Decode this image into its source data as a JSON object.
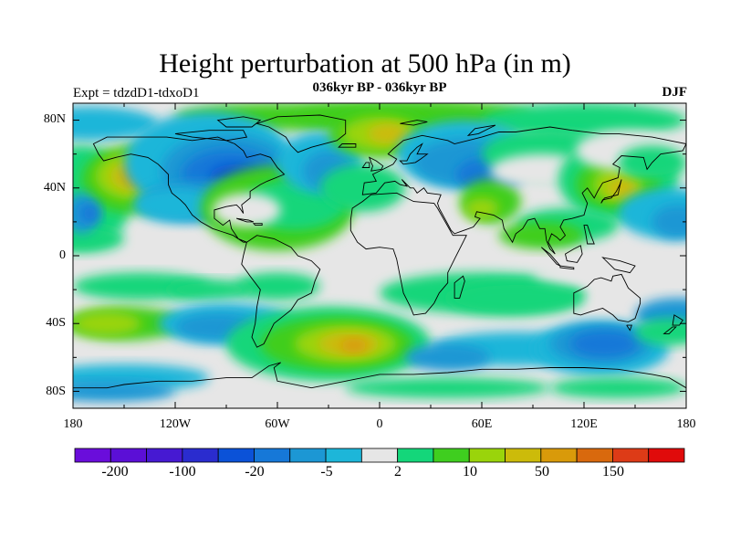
{
  "title": "Height perturbation at 500 hPa (in m)",
  "subtitle": "036kyr BP - 036kyr BP",
  "left_label": "Expt = tdzdD1-tdxoD1",
  "right_label": "DJF",
  "colors": {
    "background_land_ocean": "#e6e6e6",
    "coastline": "#000000",
    "palette": [
      "#6a0ddb",
      "#5b0fd6",
      "#4619d2",
      "#2a2ccf",
      "#0b52d8",
      "#1678d8",
      "#1c97d4",
      "#1db6d9",
      "#e6e6e6",
      "#14d67a",
      "#3fce1f",
      "#9ad40b",
      "#ccbb0a",
      "#d99a0a",
      "#d9690d",
      "#dd3b17",
      "#e00b0b"
    ]
  },
  "chart_data": {
    "type": "filled-contour-map",
    "title": "Height perturbation at 500 hPa (in m)",
    "variable": "500 hPa geopotential height perturbation",
    "units": "m",
    "season": "DJF",
    "experiment": "tdzdD1-tdxoD1",
    "period": "036kyr BP - 036kyr BP",
    "x_range": [
      -180,
      180
    ],
    "y_range": [
      -90,
      90
    ],
    "lon_ticks": [
      -180,
      -120,
      -60,
      0,
      60,
      120,
      180
    ],
    "lon_tick_labels": [
      "180",
      "120W",
      "60W",
      "0",
      "60E",
      "120E",
      "180"
    ],
    "lat_ticks": [
      80,
      40,
      0,
      -40,
      -80
    ],
    "lat_tick_labels": [
      "80N",
      "40N",
      "0",
      "40S",
      "80S"
    ],
    "colorbar_labels": [
      "-200",
      "-100",
      "-20",
      "-5",
      "2",
      "10",
      "50",
      "150"
    ],
    "color_levels": 17,
    "features": [
      {
        "lon": -142,
        "lat": 47,
        "value": 40,
        "desc": "positive anomaly NE Pacific"
      },
      {
        "lon": -88,
        "lat": 48,
        "value": -30,
        "desc": "negative anomaly North America"
      },
      {
        "lon": 5,
        "lat": 72,
        "value": 40,
        "desc": "positive anomaly Arctic / N Atlantic"
      },
      {
        "lon": 140,
        "lat": 42,
        "value": 35,
        "desc": "positive anomaly NW Pacific"
      },
      {
        "lon": 50,
        "lat": 60,
        "value": -20,
        "desc": "negative anomaly Eurasia"
      },
      {
        "lon": -30,
        "lat": -52,
        "value": 45,
        "desc": "positive anomaly South Atlantic"
      },
      {
        "lon": 130,
        "lat": -52,
        "value": -25,
        "desc": "negative anomaly south of Australia"
      },
      {
        "lon": 60,
        "lat": -20,
        "value": 8,
        "desc": "weak positive Indian Ocean"
      }
    ]
  }
}
